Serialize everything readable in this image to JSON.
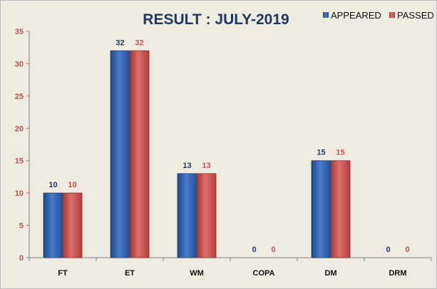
{
  "chart_data": {
    "type": "bar",
    "title": "RESULT : JULY-2019",
    "categories": [
      "FT",
      "ET",
      "WM",
      "COPA",
      "DM",
      "DRM"
    ],
    "series": [
      {
        "name": "APPEARED",
        "values": [
          10,
          32,
          13,
          0,
          15,
          0
        ],
        "color": "#2f5ea8",
        "label_color": "#1f3864"
      },
      {
        "name": "PASSED",
        "values": [
          10,
          32,
          13,
          0,
          15,
          0
        ],
        "color": "#c0504d",
        "label_color": "#c0504d"
      }
    ],
    "xlabel": "",
    "ylabel": "",
    "ylim": [
      0,
      35
    ],
    "yticks": [
      0,
      5,
      10,
      15,
      20,
      25,
      30,
      35
    ],
    "grid": false,
    "legend_position": "top-right",
    "data_labels": true,
    "colors": {
      "background": "#eeece1",
      "title": "#1f3864",
      "y_tick_labels": "#c0504d",
      "axis": "#808080"
    }
  }
}
